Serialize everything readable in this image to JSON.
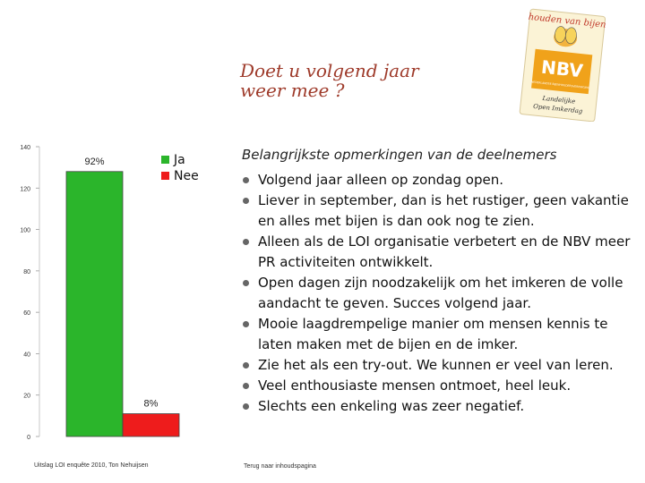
{
  "slide": {
    "title_line1": "Doet u volgend jaar",
    "title_line2": "weer mee ?",
    "subtitle": "Belangrijkste opmerkingen van de deelnemers",
    "source": "Uitslag LOI enquête 2010, Ton Nehuijsen",
    "back_link": "Terug naar inhoudspagina"
  },
  "logo": {
    "arc_text": "houden van bijen",
    "brand": "NBV",
    "small_text": "NEDERLANDSE BIJENHOUDERSVERENIGING",
    "caption_line1": "Landelijke",
    "caption_line2": "Open Imkerdag",
    "colors": {
      "brand_bg": "#f0a21a",
      "card": "#fbf3d6"
    }
  },
  "remarks": [
    "Volgend jaar alleen op zondag open.",
    "Liever in september, dan is het rustiger, geen vakantie  en alles met bijen is dan ook nog te zien.",
    "Alleen als de LOI organisatie verbetert en de NBV meer PR activiteiten ontwikkelt.",
    "Open dagen zijn noodzakelijk om het imkeren de volle aandacht te geven. Succes volgend jaar.",
    "Mooie laagdrempelige manier om mensen kennis te  laten maken met de bijen en de imker.",
    "Zie het als een try-out. We kunnen er veel van leren.",
    "Veel enthousiaste mensen ontmoet, heel leuk.",
    "Slechts een enkeling was zeer negatief."
  ],
  "chart_data": {
    "type": "bar",
    "categories": [
      "Ja",
      "Nee"
    ],
    "values": [
      128,
      11
    ],
    "data_labels": [
      "92%",
      "8%"
    ],
    "colors": [
      "#2bb52b",
      "#ee1c1c"
    ],
    "ylim": [
      0,
      140
    ],
    "yticks": [
      0,
      20,
      40,
      60,
      80,
      100,
      120,
      140
    ],
    "legend": [
      "Ja",
      "Nee"
    ],
    "legend_position": "top-right",
    "grid": false
  }
}
